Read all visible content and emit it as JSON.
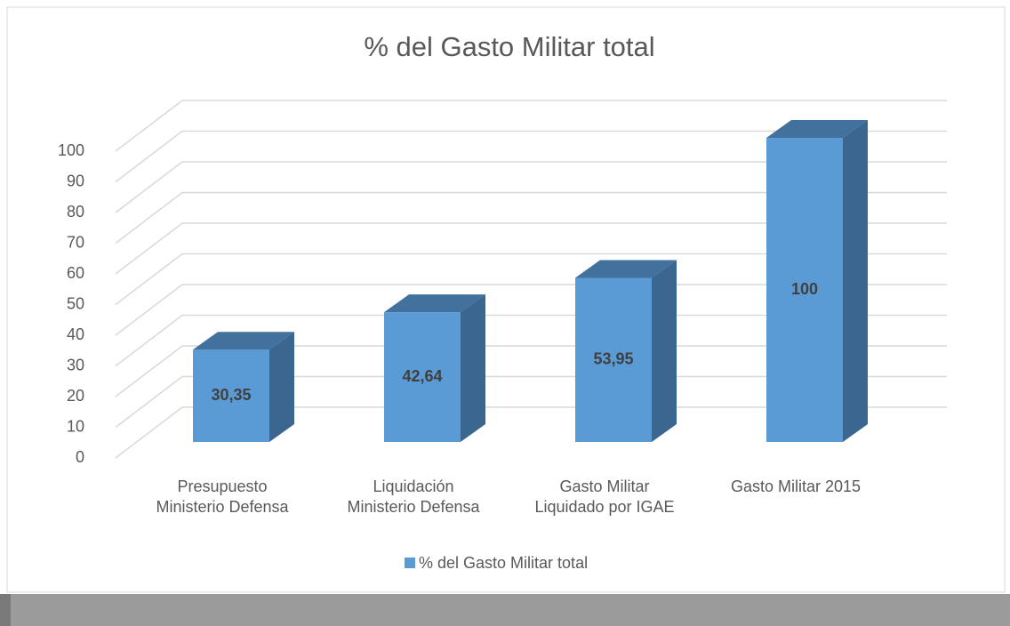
{
  "chart_data": {
    "type": "bar3d",
    "title": "% del Gasto Militar total",
    "categories": [
      "Presupuesto\nMinisterio Defensa",
      "Liquidación\nMinisterio Defensa",
      "Gasto Militar\nLiquidado por IGAE",
      "Gasto Militar 2015"
    ],
    "series": [
      {
        "name": "% del Gasto Militar total",
        "color": "#5b9bd5",
        "values": [
          30.35,
          42.64,
          53.95,
          100
        ],
        "value_labels": [
          "30,35",
          "42,64",
          "53,95",
          "100"
        ]
      }
    ],
    "ylim": [
      0,
      100
    ],
    "yticks": [
      0,
      10,
      20,
      30,
      40,
      50,
      60,
      70,
      80,
      90,
      100
    ],
    "grid": true,
    "legend": "bottom"
  }
}
